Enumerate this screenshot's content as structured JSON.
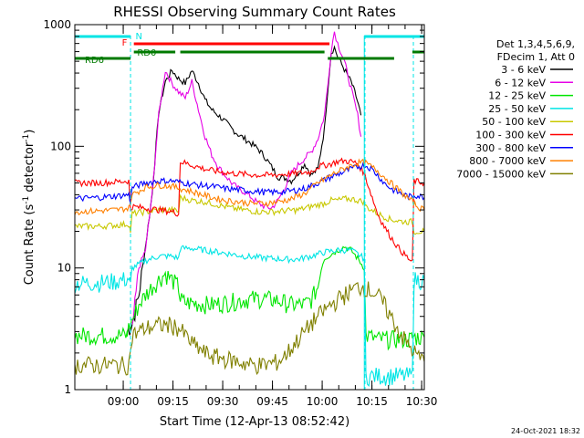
{
  "chart_data": {
    "type": "line",
    "title": "RHESSI Observing Summary Count Rates",
    "xlabel": "Start Time (12-Apr-13 08:52:42)",
    "ylabel_main": "Count Rate (s",
    "ylabel_sup1": "-1",
    "ylabel_mid": " detector",
    "ylabel_sup2": "-1",
    "ylabel_end": ")",
    "y_scale": "log",
    "ylim": [
      1,
      1000
    ],
    "xlim_min": [
      -7.3,
      98.1
    ],
    "x_tick_labels": [
      "09:00",
      "09:15",
      "09:30",
      "09:45",
      "10:00",
      "10:15",
      "10:30"
    ],
    "x_tick_values_min": [
      7.3,
      22.3,
      37.3,
      52.3,
      67.3,
      82.3,
      97.3
    ],
    "y_tick_labels": [
      "1",
      "10",
      "100",
      "1000"
    ],
    "y_tick_values": [
      1,
      10,
      100,
      1000
    ],
    "legend_header": [
      "Det 1,3,4,5,6,9,",
      "FDecim 1, Att 0"
    ],
    "legend_position": "right",
    "footer_date": "24-Oct-2021 18:32",
    "status_labels": [
      {
        "text": "N",
        "color": "#00e5e5"
      },
      {
        "text": "F",
        "color": "#ff0000"
      },
      {
        "text": "RD0",
        "color": "#007a00"
      },
      {
        "text": "RD6",
        "color": "#007a00"
      }
    ],
    "status_bars": [
      {
        "name": "N",
        "color": "#00e5e5",
        "segments": [
          [
            -7.3,
            9.5
          ],
          [
            80.0,
            98.1
          ]
        ]
      },
      {
        "name": "F",
        "color": "#ff0000",
        "segments": [
          [
            10.5,
            69.5
          ]
        ]
      },
      {
        "name": "RD0",
        "color": "#007a00",
        "segments": [
          [
            10.5,
            23.0
          ],
          [
            24.5,
            68.0
          ],
          [
            94.5,
            98.1
          ]
        ]
      },
      {
        "name": "RD6",
        "color": "#007a00",
        "segments": [
          [
            -7.3,
            9.5
          ],
          [
            69.0,
            89.0
          ]
        ]
      }
    ],
    "vlines_min": [
      9.5,
      80.2,
      94.8
    ],
    "series": [
      {
        "name": "3 - 6 keV",
        "color": "#000000",
        "x": [
          8.5,
          10,
          12,
          14,
          16,
          18,
          20,
          22,
          24,
          26,
          28,
          30,
          32,
          34,
          36,
          38,
          40,
          42,
          44,
          46,
          48,
          50,
          52,
          54,
          56,
          58,
          60,
          62,
          64,
          66,
          68,
          69,
          70,
          71,
          72,
          74,
          76,
          77.5,
          79
        ],
        "y": [
          3,
          3.5,
          6,
          15,
          40,
          190,
          340,
          420,
          360,
          330,
          420,
          330,
          240,
          200,
          180,
          160,
          140,
          125,
          115,
          105,
          95,
          82,
          68,
          56,
          55,
          52,
          60,
          72,
          58,
          65,
          140,
          300,
          590,
          650,
          540,
          430,
          340,
          260,
          180
        ]
      },
      {
        "name": "6 - 12 keV",
        "color": "#e600e6",
        "x": [
          10,
          12,
          14,
          16,
          18,
          20,
          22,
          24,
          26,
          28,
          30,
          32,
          34,
          36,
          38,
          40,
          42,
          44,
          46,
          48,
          50,
          52,
          54,
          56,
          58,
          60,
          62,
          64,
          66,
          68,
          69,
          70,
          71,
          72,
          74,
          76,
          78,
          79
        ],
        "y": [
          3,
          10,
          14,
          40,
          180,
          420,
          330,
          280,
          250,
          340,
          200,
          120,
          85,
          68,
          58,
          50,
          45,
          42,
          38,
          34,
          32,
          31,
          36,
          46,
          60,
          70,
          80,
          90,
          115,
          180,
          320,
          620,
          880,
          700,
          500,
          300,
          180,
          120
        ]
      },
      {
        "name": "12 - 25 keV",
        "color": "#00e600",
        "x": [
          -7.3,
          8.5,
          8.5,
          12,
          14,
          16,
          18,
          20,
          22,
          24,
          24.5,
          26,
          30,
          34,
          38,
          42,
          46,
          50,
          54,
          58,
          62,
          64,
          66,
          67,
          68,
          70,
          72,
          74,
          76,
          78,
          80,
          80.5,
          84,
          88,
          92,
          94,
          94.5,
          98.1
        ],
        "y": [
          2.8,
          2.8,
          3,
          5,
          6,
          7,
          8,
          9,
          8,
          7,
          5.5,
          5.2,
          5.1,
          5,
          5.2,
          5.4,
          5.6,
          5.6,
          5.4,
          5,
          5,
          5.5,
          7,
          10,
          12,
          13,
          14,
          15,
          14,
          12,
          10,
          2.8,
          2.6,
          2.6,
          2.6,
          2.6,
          2.7,
          2.7
        ]
      },
      {
        "name": "25 - 50 keV",
        "color": "#00e5e5",
        "x": [
          -7.3,
          0,
          5,
          9,
          9.5,
          10,
          14,
          18,
          22,
          24,
          24.5,
          28,
          32,
          36,
          40,
          44,
          48,
          52,
          56,
          60,
          64,
          68,
          72,
          76,
          78,
          80,
          80.5,
          84,
          88,
          92,
          94.5,
          95,
          98.1
        ],
        "y": [
          7.5,
          7.6,
          7.8,
          8.2,
          7,
          10,
          11.5,
          12.5,
          12.5,
          12,
          14.5,
          14.5,
          14,
          13.5,
          13,
          12.5,
          12.2,
          12,
          11.8,
          11.8,
          12.5,
          13.5,
          14,
          14,
          13,
          12,
          1.3,
          1.3,
          1.3,
          1.3,
          1.3,
          8,
          8
        ]
      },
      {
        "name": "50 - 100 keV",
        "color": "#c8c800",
        "x": [
          -7.3,
          0,
          5,
          9,
          9.5,
          10,
          14,
          18,
          22,
          24,
          24.5,
          28,
          32,
          36,
          40,
          44,
          48,
          52,
          56,
          60,
          64,
          66,
          68,
          70,
          72,
          74,
          76,
          78,
          80,
          80.5,
          84,
          88,
          92,
          94.5,
          95,
          98.1
        ],
        "y": [
          22,
          22,
          22.5,
          23,
          20,
          28,
          29,
          30,
          30,
          29,
          38,
          36,
          35,
          33,
          31,
          30,
          29,
          29,
          29.5,
          30,
          32,
          33,
          34,
          36,
          36,
          37,
          37,
          36,
          35,
          32,
          28,
          25,
          24,
          24,
          20,
          20
        ]
      },
      {
        "name": "100 - 300 keV",
        "color": "#ff0000",
        "x": [
          -7.3,
          0,
          5,
          9,
          9.5,
          10,
          14,
          18,
          22,
          24,
          24.5,
          28,
          32,
          36,
          40,
          44,
          48,
          52,
          56,
          60,
          64,
          66,
          68,
          70,
          72,
          74,
          76,
          78,
          80,
          84,
          86,
          88,
          90,
          92,
          94.5,
          95,
          98.1
        ],
        "y": [
          50,
          50,
          51,
          52,
          30,
          32,
          31,
          30,
          29,
          28,
          75,
          70,
          65,
          62,
          60,
          59,
          58,
          58,
          59,
          60,
          62,
          68,
          70,
          72,
          75,
          76,
          75,
          72,
          60,
          28,
          22,
          18,
          15,
          13,
          11,
          52,
          50
        ]
      },
      {
        "name": "300 - 800 keV",
        "color": "#0000ff",
        "x": [
          -7.3,
          0,
          5,
          9,
          9.5,
          10,
          14,
          18,
          22,
          26,
          30,
          34,
          38,
          42,
          46,
          50,
          54,
          58,
          62,
          66,
          70,
          74,
          78,
          80,
          82,
          84,
          86,
          88,
          90,
          92,
          94.5,
          95,
          98.1
        ],
        "y": [
          37,
          38,
          39,
          40,
          35,
          46,
          50,
          52,
          52,
          50,
          48,
          47,
          45,
          44,
          43,
          42,
          42,
          43,
          45,
          50,
          56,
          62,
          68,
          70,
          66,
          58,
          50,
          45,
          42,
          40,
          38,
          40,
          38
        ]
      },
      {
        "name": "800 - 7000 keV",
        "color": "#ff8000",
        "x": [
          -7.3,
          0,
          5,
          9,
          10,
          14,
          18,
          22,
          26,
          30,
          34,
          38,
          42,
          46,
          50,
          54,
          58,
          62,
          66,
          70,
          74,
          78,
          80,
          84,
          88,
          92,
          94.5,
          96,
          98.1
        ],
        "y": [
          29,
          29.5,
          30,
          31,
          40,
          46,
          48,
          47,
          44,
          41,
          38,
          36,
          35,
          34,
          34,
          35,
          37,
          41,
          50,
          58,
          66,
          73,
          74,
          63,
          50,
          40,
          35,
          32,
          30
        ]
      },
      {
        "name": "7000 - 15000 keV",
        "color": "#808000",
        "x": [
          -7.3,
          5,
          9,
          10,
          12,
          14,
          18,
          22,
          24,
          26,
          28,
          30,
          32,
          34,
          38,
          42,
          46,
          50,
          54,
          56,
          58,
          60,
          62,
          64,
          66,
          68,
          70,
          72,
          74,
          76,
          78,
          80,
          82,
          84,
          86,
          88,
          90,
          92,
          94,
          96,
          98.1
        ],
        "y": [
          1.6,
          1.6,
          1.6,
          2.8,
          3,
          3.2,
          3.4,
          3.4,
          3.2,
          2.8,
          2.4,
          2.2,
          2,
          1.9,
          1.8,
          1.7,
          1.6,
          1.6,
          1.7,
          1.9,
          2.2,
          2.6,
          3,
          3.5,
          4,
          4.5,
          5,
          5.5,
          6,
          6.5,
          7,
          7,
          6.5,
          6,
          5,
          4,
          3.2,
          2.6,
          2.2,
          1.9,
          1.7
        ]
      }
    ]
  }
}
